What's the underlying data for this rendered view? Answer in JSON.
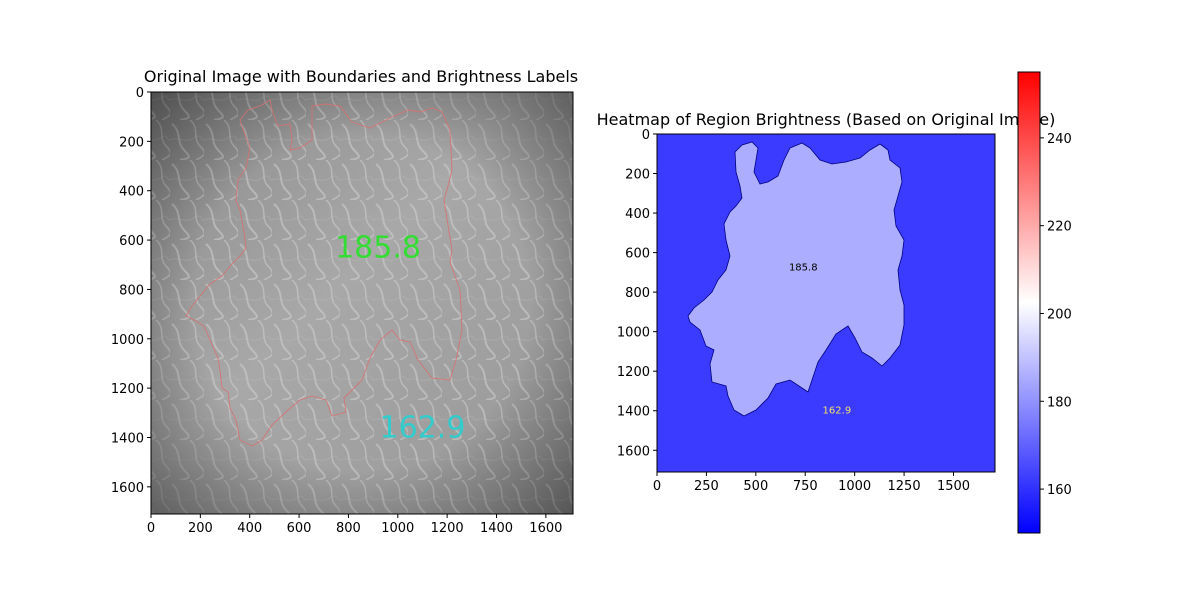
{
  "chart_data": [
    {
      "type": "image",
      "title": "Original Image with Boundaries and Brightness Labels",
      "xlim": [
        0,
        1710
      ],
      "ylim": [
        1710,
        0
      ],
      "x_ticks": [
        0,
        200,
        400,
        600,
        800,
        1000,
        1200,
        1400,
        1600
      ],
      "y_ticks": [
        0,
        200,
        400,
        600,
        800,
        1000,
        1200,
        1400,
        1600
      ],
      "boundary_color": "#d97070",
      "labels": [
        {
          "text": "185.8",
          "x": 920,
          "y": 670,
          "color": "#33dd33"
        },
        {
          "text": "162.9",
          "x": 1100,
          "y": 1400,
          "color": "#33cccc"
        }
      ]
    },
    {
      "type": "heatmap",
      "title": "Heatmap of Region Brightness (Based on Original Image)",
      "xlim": [
        0,
        1710
      ],
      "ylim": [
        1710,
        0
      ],
      "x_ticks": [
        0,
        250,
        500,
        750,
        1000,
        1250,
        1500
      ],
      "y_ticks": [
        0,
        200,
        400,
        600,
        800,
        1000,
        1200,
        1400,
        1600
      ],
      "regions": [
        {
          "label": "185.8",
          "value": 185.8,
          "color": "#adadff",
          "label_x": 740,
          "label_y": 690,
          "label_color": "#000000"
        },
        {
          "label": "162.9",
          "value": 162.9,
          "color": "#3b3bff",
          "label_x": 910,
          "label_y": 1415,
          "label_color": "#f0e06a"
        }
      ],
      "colorbar": {
        "cmap": "bwr",
        "vmin": 150,
        "vmax": 255,
        "ticks": [
          160,
          180,
          200,
          220,
          240
        ]
      }
    }
  ]
}
